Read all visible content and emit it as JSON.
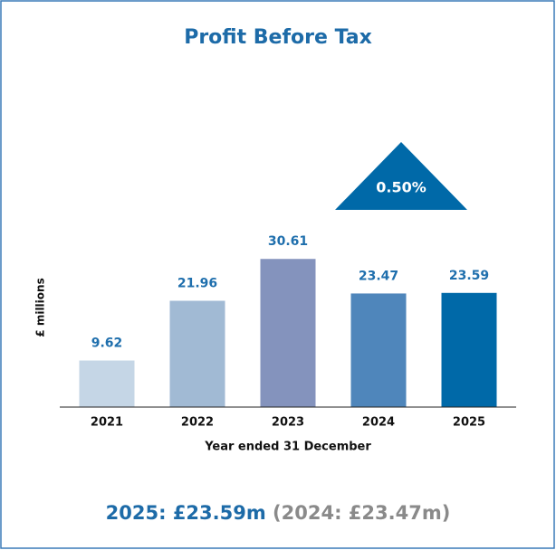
{
  "chart_data": {
    "type": "bar",
    "title": "Profit Before Tax",
    "categories": [
      "2021",
      "2022",
      "2023",
      "2024",
      "2025"
    ],
    "values": [
      9.62,
      21.96,
      30.61,
      23.47,
      23.59
    ],
    "colors": [
      "#c5d6e6",
      "#a1bad4",
      "#8493bd",
      "#4f86bb",
      "#0069a8"
    ],
    "ylim": [
      0,
      40
    ],
    "y_label": "£  millions",
    "x_label": "Year ended 31 December",
    "annotation": "0.50%",
    "footer": {
      "current": "2025: £23.59m",
      "previous": "(2024: £23.47m)"
    }
  }
}
